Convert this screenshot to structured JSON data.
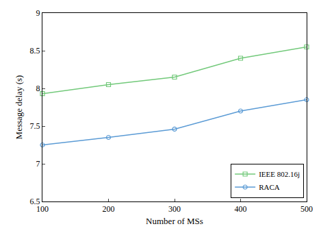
{
  "chart_data": {
    "type": "line",
    "x_label": "Number of MSs",
    "y_label": "Message delay (s)",
    "x": [
      100,
      200,
      300,
      400,
      500
    ],
    "series": [
      {
        "name": "IEEE 802.16j",
        "color": "#72c97a",
        "marker": "square",
        "values": [
          7.93,
          8.05,
          8.15,
          8.4,
          8.55
        ]
      },
      {
        "name": "RACA",
        "color": "#5b9bd5",
        "marker": "circle",
        "values": [
          7.25,
          7.35,
          7.46,
          7.7,
          7.85
        ]
      }
    ],
    "xlim": [
      100,
      500
    ],
    "xticks": [
      100,
      200,
      300,
      400,
      500
    ],
    "ylim": [
      6.5,
      9
    ],
    "yticks": [
      6.5,
      7,
      7.5,
      8,
      8.5,
      9
    ],
    "grid": false,
    "legend": "lower right"
  }
}
